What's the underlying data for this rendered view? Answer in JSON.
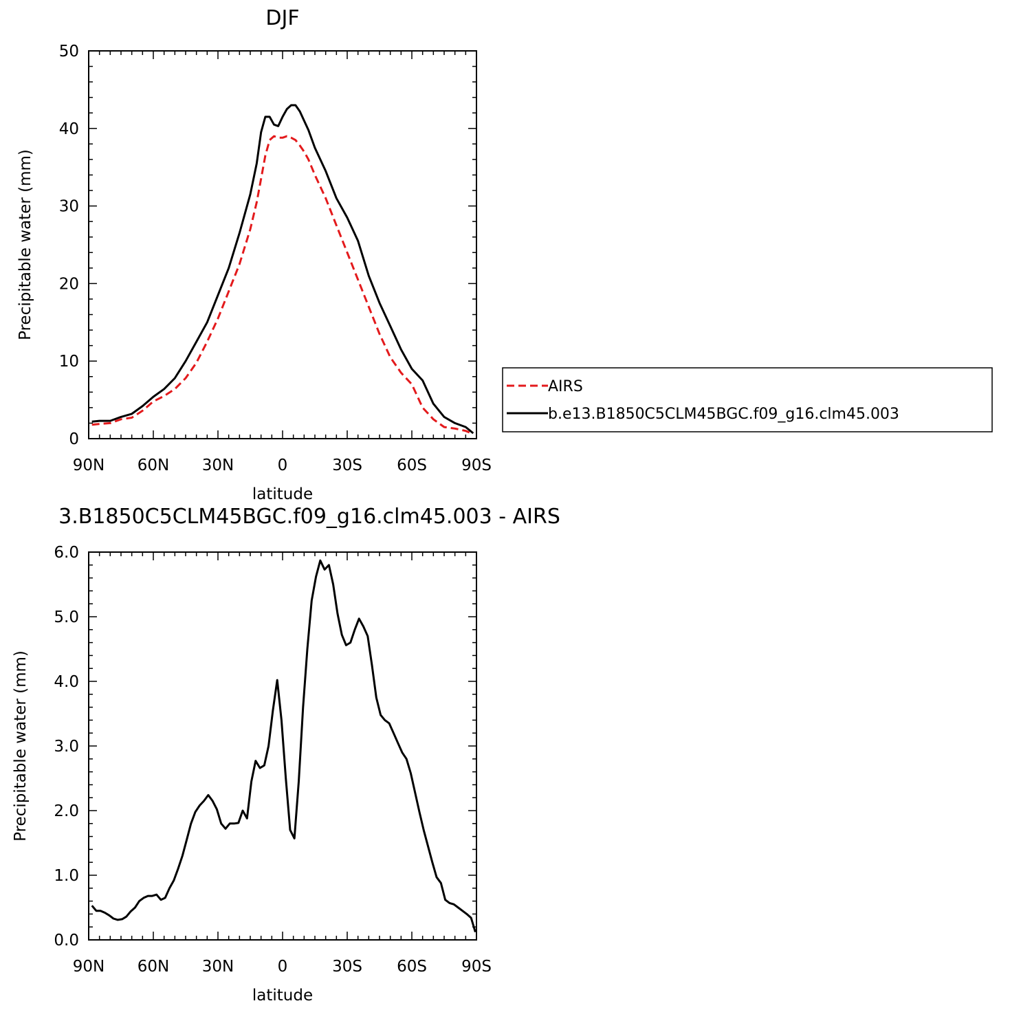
{
  "chart_data": [
    {
      "type": "line",
      "title": "DJF",
      "xlabel": "latitude",
      "ylabel": "Precipitable water (mm)",
      "xlim": [
        -90,
        90
      ],
      "ylim": [
        0,
        50
      ],
      "xticks": [
        -90,
        -60,
        -30,
        0,
        30,
        60,
        90
      ],
      "xtick_labels": [
        "90N",
        "60N",
        "30N",
        "0",
        "30S",
        "60S",
        "90S"
      ],
      "yticks": [
        0,
        10,
        20,
        30,
        40,
        50
      ],
      "ytick_labels": [
        "0",
        "10",
        "20",
        "30",
        "40",
        "50"
      ],
      "grid": false,
      "legend": "right",
      "series": [
        {
          "name": "AIRS",
          "color": "#e31a1c",
          "style": "dashed",
          "x": [
            -88.5,
            -85,
            -80,
            -75,
            -70,
            -65,
            -60,
            -55,
            -50,
            -45,
            -40,
            -35,
            -30,
            -25,
            -20,
            -15,
            -12,
            -10,
            -8,
            -6,
            -4,
            -2,
            0,
            2,
            4,
            6,
            8,
            10,
            12,
            15,
            20,
            25,
            30,
            35,
            40,
            45,
            50,
            55,
            60,
            65,
            70,
            75,
            80,
            85,
            88.5
          ],
          "y": [
            1.8,
            1.9,
            2.0,
            2.5,
            2.7,
            3.6,
            4.8,
            5.5,
            6.4,
            7.8,
            9.8,
            12.5,
            15.5,
            19.0,
            22.5,
            27.0,
            30.5,
            33.5,
            36.5,
            38.5,
            39.0,
            38.8,
            38.8,
            39.0,
            38.8,
            38.5,
            37.8,
            37.0,
            36.0,
            34.0,
            31.0,
            27.5,
            24.0,
            20.5,
            17.0,
            13.5,
            10.5,
            8.5,
            7.0,
            4.0,
            2.5,
            1.5,
            1.3,
            1.0,
            0.6
          ]
        },
        {
          "name": "b.e13.B1850C5CLM45BGC.f09_g16.clm45.003",
          "color": "#000000",
          "style": "solid",
          "x": [
            -88.5,
            -85,
            -80,
            -75,
            -70,
            -65,
            -60,
            -55,
            -50,
            -45,
            -40,
            -35,
            -30,
            -25,
            -20,
            -15,
            -12,
            -10,
            -8,
            -6,
            -4,
            -2,
            0,
            2,
            4,
            6,
            8,
            10,
            12,
            15,
            20,
            25,
            30,
            35,
            40,
            45,
            50,
            55,
            60,
            65,
            70,
            75,
            80,
            85,
            88.5
          ],
          "y": [
            2.2,
            2.3,
            2.3,
            2.8,
            3.2,
            4.2,
            5.4,
            6.4,
            7.8,
            10.0,
            12.5,
            15.0,
            18.5,
            22.0,
            26.5,
            31.5,
            35.5,
            39.5,
            41.5,
            41.5,
            40.5,
            40.3,
            41.5,
            42.5,
            43.0,
            43.0,
            42.2,
            41.0,
            39.8,
            37.5,
            34.5,
            31.0,
            28.5,
            25.5,
            21.0,
            17.5,
            14.5,
            11.5,
            9.0,
            7.5,
            4.5,
            2.8,
            2.0,
            1.5,
            0.7
          ]
        }
      ]
    },
    {
      "type": "line",
      "title": "3.B1850C5CLM45BGC.f09_g16.clm45.003 - AIRS",
      "xlabel": "latitude",
      "ylabel": "Precipitable water (mm)",
      "xlim": [
        -90,
        90
      ],
      "ylim": [
        0,
        6
      ],
      "xticks": [
        -90,
        -60,
        -30,
        0,
        30,
        60,
        90
      ],
      "xtick_labels": [
        "90N",
        "60N",
        "30N",
        "0",
        "30S",
        "60S",
        "90S"
      ],
      "yticks": [
        0,
        1,
        2,
        3,
        4,
        5,
        6
      ],
      "ytick_labels": [
        "0.0",
        "1.0",
        "2.0",
        "3.0",
        "4.0",
        "5.0",
        "6.0"
      ],
      "grid": false,
      "series": [
        {
          "color": "#000000",
          "style": "solid",
          "x": [
            -88.5,
            -86.5,
            -84.5,
            -82.5,
            -80.5,
            -78.5,
            -76.5,
            -74.5,
            -72.5,
            -70.5,
            -68.5,
            -66.5,
            -64.5,
            -62.5,
            -60.5,
            -58.5,
            -56.5,
            -54.5,
            -52.5,
            -50.5,
            -48.5,
            -46.5,
            -44.5,
            -42.5,
            -40.5,
            -38.5,
            -36.5,
            -34.5,
            -32.5,
            -30.5,
            -28.5,
            -26.5,
            -24.5,
            -22.5,
            -20.5,
            -18.5,
            -16.5,
            -14.5,
            -12.5,
            -10.5,
            -8.5,
            -6.5,
            -4.5,
            -2.5,
            -0.5,
            1.5,
            3.5,
            5.5,
            7.5,
            9.5,
            11.5,
            13.5,
            15.5,
            17.5,
            19.5,
            21.5,
            23.5,
            25.5,
            27.5,
            29.5,
            31.5,
            33.5,
            35.5,
            37.5,
            39.5,
            41.5,
            43.5,
            45.5,
            47.5,
            49.5,
            51.5,
            53.5,
            55.5,
            57.5,
            59.5,
            61.5,
            63.5,
            65.5,
            67.5,
            69.5,
            71.5,
            73.5,
            75.5,
            77.5,
            79.5,
            81.5,
            83.5,
            85.5,
            87.5,
            89.5
          ],
          "y": [
            0.53,
            0.45,
            0.45,
            0.42,
            0.38,
            0.33,
            0.31,
            0.32,
            0.36,
            0.44,
            0.5,
            0.6,
            0.65,
            0.68,
            0.68,
            0.7,
            0.62,
            0.65,
            0.8,
            0.92,
            1.1,
            1.3,
            1.55,
            1.8,
            1.98,
            2.08,
            2.15,
            2.24,
            2.15,
            2.02,
            1.8,
            1.72,
            1.8,
            1.8,
            1.81,
            2.0,
            1.88,
            2.45,
            2.77,
            2.66,
            2.7,
            3.0,
            3.55,
            4.02,
            3.4,
            2.5,
            1.7,
            1.57,
            2.45,
            3.6,
            4.5,
            5.25,
            5.62,
            5.87,
            5.73,
            5.8,
            5.5,
            5.05,
            4.72,
            4.56,
            4.6,
            4.8,
            4.97,
            4.85,
            4.7,
            4.25,
            3.75,
            3.48,
            3.4,
            3.35,
            3.2,
            3.05,
            2.9,
            2.8,
            2.58,
            2.28,
            1.98,
            1.7,
            1.45,
            1.2,
            0.97,
            0.88,
            0.62,
            0.57,
            0.55,
            0.5,
            0.45,
            0.4,
            0.34,
            0.12
          ]
        }
      ]
    }
  ]
}
